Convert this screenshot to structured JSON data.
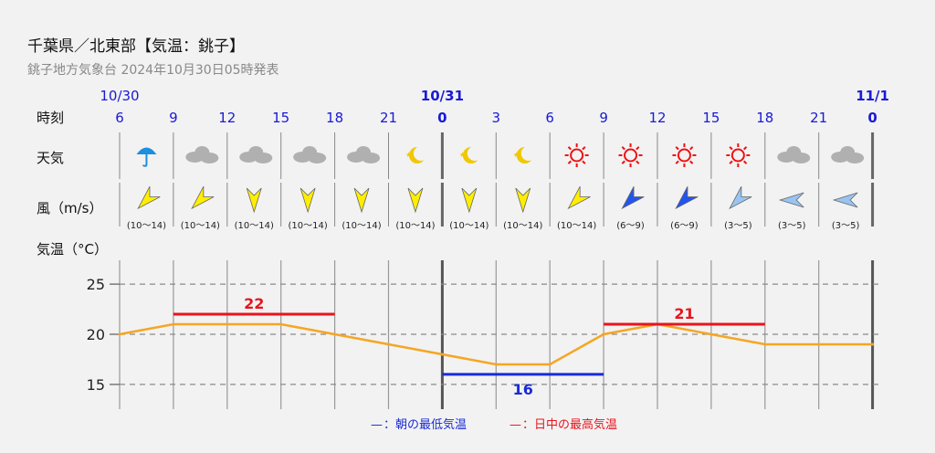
{
  "header": {
    "title": "千葉県／北東部【気温：銚子】",
    "subtitle": "銚子地方気象台 2024年10月30日05時発表"
  },
  "rows": {
    "time_label": "時刻",
    "weather_label": "天気",
    "wind_label": "風（m/s）",
    "temp_label": "気温（°C）"
  },
  "dates": [
    "10/30",
    "10/31",
    "11/1"
  ],
  "hours": [
    "6",
    "9",
    "12",
    "15",
    "18",
    "21",
    "0",
    "3",
    "6",
    "9",
    "12",
    "15",
    "18",
    "21",
    "0"
  ],
  "weather": [
    "rain-umbrella-icon",
    "cloud-icon",
    "cloud-icon",
    "cloud-icon",
    "cloud-icon",
    "moon-icon",
    "moon-icon",
    "moon-icon",
    "sun-icon",
    "sun-icon",
    "sun-icon",
    "sun-icon",
    "cloud-icon",
    "cloud-icon"
  ],
  "wind": [
    {
      "dir": "NE",
      "speed": "(10〜14)",
      "color": "#ffee00"
    },
    {
      "dir": "NE",
      "speed": "(10〜14)",
      "color": "#ffee00"
    },
    {
      "dir": "N",
      "speed": "(10〜14)",
      "color": "#ffee00"
    },
    {
      "dir": "N",
      "speed": "(10〜14)",
      "color": "#ffee00"
    },
    {
      "dir": "N",
      "speed": "(10〜14)",
      "color": "#ffee00"
    },
    {
      "dir": "N",
      "speed": "(10〜14)",
      "color": "#ffee00"
    },
    {
      "dir": "N",
      "speed": "(10〜14)",
      "color": "#ffee00"
    },
    {
      "dir": "N",
      "speed": "(10〜14)",
      "color": "#ffee00"
    },
    {
      "dir": "NE",
      "speed": "(10〜14)",
      "color": "#ffee00"
    },
    {
      "dir": "NE",
      "speed": "(6〜9)",
      "color": "#2255ee"
    },
    {
      "dir": "NE",
      "speed": "(6〜9)",
      "color": "#2255ee"
    },
    {
      "dir": "NE",
      "speed": "(3〜5)",
      "color": "#99c4f2"
    },
    {
      "dir": "E",
      "speed": "(3〜5)",
      "color": "#99c4f2"
    },
    {
      "dir": "E",
      "speed": "(3〜5)",
      "color": "#99c4f2"
    }
  ],
  "chart_data": {
    "type": "line",
    "x": [
      "10/30 6",
      "9",
      "12",
      "15",
      "18",
      "21",
      "10/31 0",
      "3",
      "6",
      "9",
      "12",
      "15",
      "18",
      "21",
      "11/1 0"
    ],
    "series": [
      {
        "values": [
          20,
          21,
          21,
          21,
          20,
          19,
          18,
          17,
          17,
          20,
          21,
          20,
          19,
          19,
          19
        ],
        "color": "#f5a623"
      }
    ],
    "yticks": [
      15,
      20,
      25
    ],
    "ylim": [
      12.5,
      27.5
    ],
    "grid": true,
    "min_temp": {
      "value": 16,
      "label": "16",
      "x_start": "10/31 0",
      "x_end": "10/31 9",
      "color": "#1a2bd6"
    },
    "max_temps": [
      {
        "value": 22,
        "label": "22",
        "x_start": "10/30 9",
        "x_end": "10/30 18",
        "color": "#e8141c"
      },
      {
        "value": 21,
        "label": "21",
        "x_start": "10/31 9",
        "x_end": "10/31 18",
        "color": "#e8141c"
      }
    ],
    "legend": {
      "min_marker": "—",
      "min_text": "：朝の最低気温",
      "max_marker": "—",
      "max_text": "：日中の最高気温",
      "placement": "bottom"
    }
  }
}
